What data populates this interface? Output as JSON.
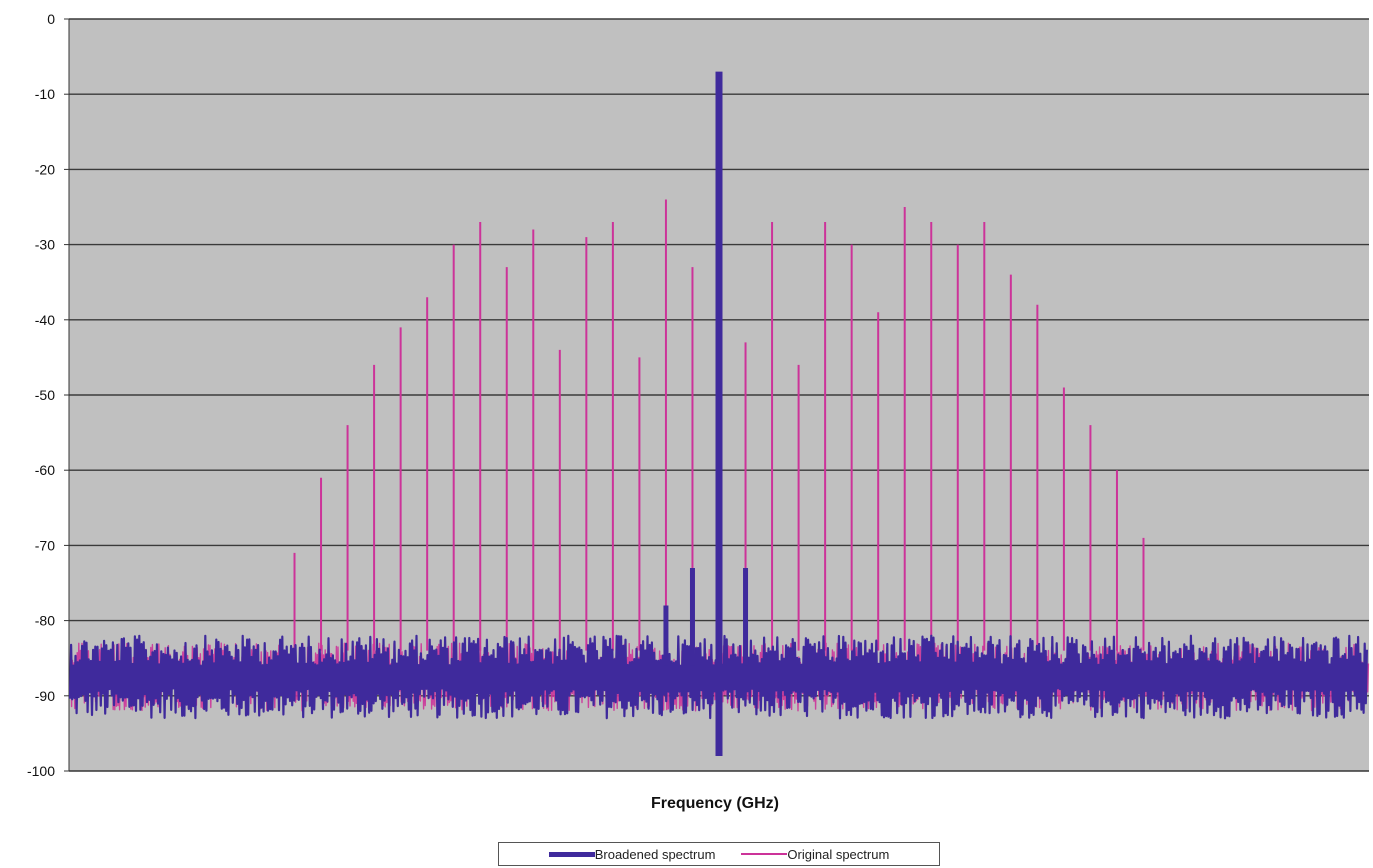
{
  "chart_data": {
    "type": "line",
    "title": "",
    "xlabel": "Frequency (GHz)",
    "ylabel": "",
    "ylim": [
      -100,
      0
    ],
    "yticks": [
      0,
      -10,
      -20,
      -30,
      -40,
      -50,
      -60,
      -70,
      -80,
      -90,
      -100
    ],
    "grid": "horizontal",
    "legend_position": "bottom",
    "plot_background": "#c0c0c0",
    "series": [
      {
        "name": "Broadened spectrum",
        "color": "#3f2a9c",
        "noise_floor": [
          -93,
          -82
        ],
        "peaks": [
          {
            "index": 24,
            "value": -7
          },
          {
            "index": 23,
            "value": -73
          },
          {
            "index": 25,
            "value": -73
          },
          {
            "index": 22,
            "value": -78
          }
        ]
      },
      {
        "name": "Original spectrum",
        "color": "#cc3399",
        "noise_floor": [
          -92,
          -83
        ],
        "comb_lines": [
          {
            "index": 8,
            "value": -71
          },
          {
            "index": 9,
            "value": -61
          },
          {
            "index": 10,
            "value": -54
          },
          {
            "index": 11,
            "value": -46
          },
          {
            "index": 12,
            "value": -41
          },
          {
            "index": 13,
            "value": -37
          },
          {
            "index": 14,
            "value": -30
          },
          {
            "index": 15,
            "value": -27
          },
          {
            "index": 16,
            "value": -33
          },
          {
            "index": 17,
            "value": -28
          },
          {
            "index": 18,
            "value": -44
          },
          {
            "index": 19,
            "value": -29
          },
          {
            "index": 20,
            "value": -27
          },
          {
            "index": 21,
            "value": -45
          },
          {
            "index": 22,
            "value": -24
          },
          {
            "index": 23,
            "value": -33
          },
          {
            "index": 25,
            "value": -43
          },
          {
            "index": 26,
            "value": -27
          },
          {
            "index": 27,
            "value": -46
          },
          {
            "index": 28,
            "value": -27
          },
          {
            "index": 29,
            "value": -30
          },
          {
            "index": 30,
            "value": -39
          },
          {
            "index": 31,
            "value": -25
          },
          {
            "index": 32,
            "value": -27
          },
          {
            "index": 33,
            "value": -30
          },
          {
            "index": 34,
            "value": -27
          },
          {
            "index": 35,
            "value": -34
          },
          {
            "index": 36,
            "value": -38
          },
          {
            "index": 37,
            "value": -49
          },
          {
            "index": 38,
            "value": -54
          },
          {
            "index": 39,
            "value": -60
          },
          {
            "index": 40,
            "value": -69
          }
        ]
      }
    ]
  }
}
